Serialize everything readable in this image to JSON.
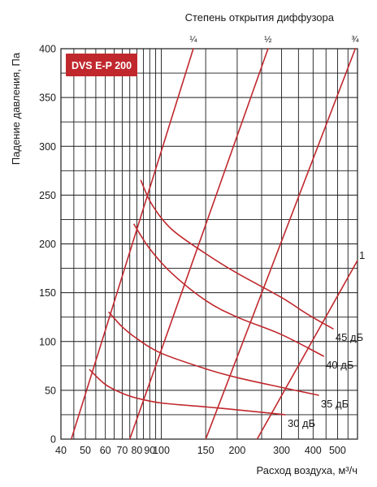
{
  "chart_data": {
    "type": "line",
    "title": "DVS E-P 200",
    "xlabel": "Расход воздуха, м³/ч",
    "ylabel": "Падение давления, Па",
    "top_label": "Степень открытия диффузора",
    "xscale": "log",
    "xlim": [
      40,
      600
    ],
    "ylim": [
      0,
      400
    ],
    "x_ticks": [
      40,
      50,
      60,
      70,
      80,
      90,
      100,
      150,
      200,
      300,
      400,
      500
    ],
    "x_tick_labels": [
      "40",
      "50",
      "60",
      "70",
      "80",
      "90",
      "100",
      "150",
      "200",
      "300",
      "400",
      "500"
    ],
    "y_ticks": [
      0,
      50,
      100,
      150,
      200,
      250,
      300,
      350,
      400
    ],
    "y_tick_labels": [
      "0",
      "50",
      "100",
      "150",
      "200",
      "250",
      "300",
      "350",
      "400"
    ],
    "x_grid": [
      40,
      45,
      50,
      55,
      60,
      65,
      70,
      75,
      80,
      85,
      90,
      95,
      100,
      150,
      200,
      250,
      300,
      350,
      400,
      450,
      500,
      550,
      600
    ],
    "y_grid": [
      0,
      25,
      50,
      75,
      100,
      125,
      150,
      175,
      200,
      225,
      250,
      275,
      300,
      325,
      350,
      375,
      400
    ],
    "grid": true,
    "line_color": "#c0282d",
    "title_box_color": "#c0282d",
    "opening_lines": [
      {
        "label": "¼",
        "points": [
          [
            44,
            0
          ],
          [
            134,
            400
          ]
        ]
      },
      {
        "label": "½",
        "points": [
          [
            75,
            0
          ],
          [
            265,
            400
          ]
        ]
      },
      {
        "label": "¾",
        "points": [
          [
            150,
            0
          ],
          [
            588,
            400
          ]
        ]
      },
      {
        "label": "1",
        "points": [
          [
            240,
            0
          ],
          [
            600,
            183
          ]
        ]
      }
    ],
    "noise_curves": [
      {
        "label": "45 дБ",
        "points": [
          [
            83,
            265
          ],
          [
            92,
            240
          ],
          [
            110,
            215
          ],
          [
            150,
            190
          ],
          [
            200,
            170
          ],
          [
            300,
            145
          ],
          [
            380,
            128
          ],
          [
            480,
            113
          ]
        ]
      },
      {
        "label": "40 дБ",
        "points": [
          [
            78,
            220
          ],
          [
            90,
            195
          ],
          [
            110,
            170
          ],
          [
            150,
            142
          ],
          [
            200,
            125
          ],
          [
            300,
            107
          ],
          [
            440,
            85
          ]
        ]
      },
      {
        "label": "35 дБ",
        "points": [
          [
            62,
            130
          ],
          [
            70,
            115
          ],
          [
            80,
            103
          ],
          [
            100,
            88
          ],
          [
            150,
            72
          ],
          [
            200,
            63
          ],
          [
            300,
            53
          ],
          [
            420,
            45
          ]
        ]
      },
      {
        "label": "30 дБ",
        "points": [
          [
            52,
            71
          ],
          [
            60,
            56
          ],
          [
            70,
            47
          ],
          [
            80,
            42
          ],
          [
            100,
            37
          ],
          [
            150,
            33
          ],
          [
            200,
            30
          ],
          [
            310,
            25
          ]
        ]
      }
    ]
  }
}
